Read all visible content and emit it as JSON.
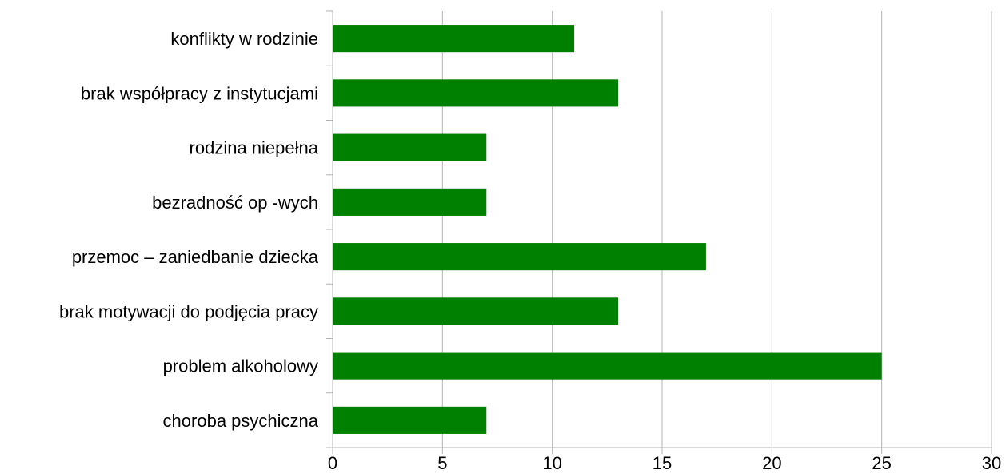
{
  "chart_data": {
    "type": "bar",
    "orientation": "horizontal",
    "categories": [
      "konflikty w rodzinie",
      "brak współpracy z instytucjami",
      "rodzina niepełna",
      "bezradność op -wych",
      "przemoc – zaniedbanie dziecka",
      "brak motywacji do podjęcia pracy",
      "problem alkoholowy",
      "choroba psychiczna"
    ],
    "values": [
      11,
      13,
      7,
      7,
      17,
      13,
      25,
      7
    ],
    "xlim": [
      0,
      30
    ],
    "xticks": [
      "0",
      "5",
      "10",
      "15",
      "20",
      "25",
      "30"
    ],
    "grid": true,
    "legend": "none",
    "title": "",
    "xlabel": "",
    "ylabel": "",
    "colors": {
      "bar": "#008000",
      "grid": "#b3b3b3",
      "axis": "#b3b3b3"
    }
  }
}
